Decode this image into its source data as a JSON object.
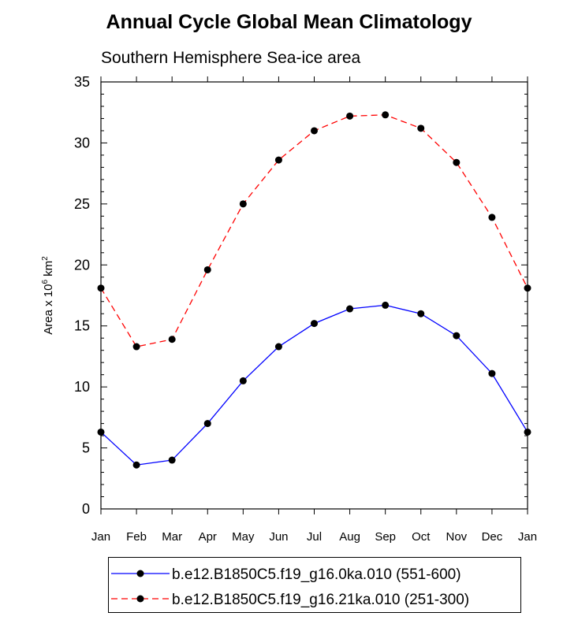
{
  "chart_data": {
    "type": "line",
    "title": "Annual Cycle Global Mean Climatology",
    "subtitle": "Southern Hemisphere Sea-ice area",
    "ylabel_main": "Area x 10",
    "ylabel_exp1": "6",
    "ylabel_unit": " km",
    "ylabel_exp2": "2",
    "categories": [
      "Jan",
      "Feb",
      "Mar",
      "Apr",
      "May",
      "Jun",
      "Jul",
      "Aug",
      "Sep",
      "Oct",
      "Nov",
      "Dec",
      "Jan"
    ],
    "ylim": [
      0,
      35
    ],
    "yticks": [
      0,
      5,
      10,
      15,
      20,
      25,
      30,
      35
    ],
    "series": [
      {
        "name": "b.e12.B1850C5.f19_g16.0ka.010 (551-600)",
        "color": "#0000ff",
        "dash": "solid",
        "values": [
          6.3,
          3.6,
          4.0,
          7.0,
          10.5,
          13.3,
          15.2,
          16.4,
          16.7,
          16.0,
          14.2,
          11.1,
          6.3
        ]
      },
      {
        "name": "b.e12.B1850C5.f19_g16.21ka.010 (251-300)",
        "color": "#ff0000",
        "dash": "dashed",
        "values": [
          18.1,
          13.3,
          13.9,
          19.6,
          25.0,
          28.6,
          31.0,
          32.2,
          32.3,
          31.2,
          28.4,
          23.9,
          18.1
        ]
      }
    ]
  }
}
